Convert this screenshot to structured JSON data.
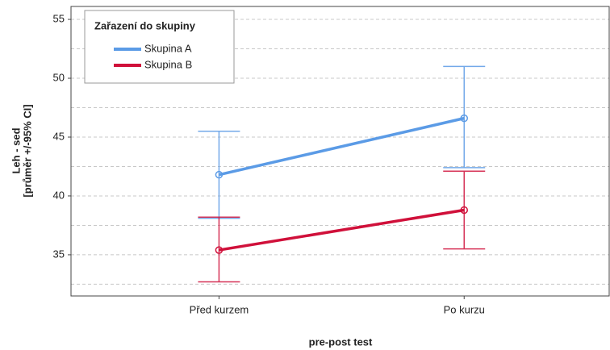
{
  "chart_data": {
    "type": "line",
    "x_label": "pre-post test",
    "y_label": [
      "Leh - sed",
      "[průměr +/-95% CI]"
    ],
    "legend_title": "Zařazení do skupiny",
    "legend": "upper left",
    "categories": [
      "Před kurzem",
      "Po kurzu"
    ],
    "series": [
      {
        "name": "Skupina A",
        "color": "#5b9be6",
        "values": [
          41.8,
          46.6
        ],
        "ci_low": [
          38.1,
          42.4
        ],
        "ci_high": [
          45.5,
          51.0
        ]
      },
      {
        "name": "Skupina B",
        "color": "#d0103a",
        "values": [
          35.4,
          38.8
        ],
        "ci_low": [
          32.7,
          35.5
        ],
        "ci_high": [
          38.2,
          42.1
        ]
      }
    ],
    "ylim": [
      31.5,
      56.1
    ],
    "yticks": [
      35,
      40,
      45,
      50,
      55
    ],
    "minor_grid": [
      32.5,
      37.5,
      42.5,
      47.5,
      52.5
    ],
    "grid": true
  }
}
